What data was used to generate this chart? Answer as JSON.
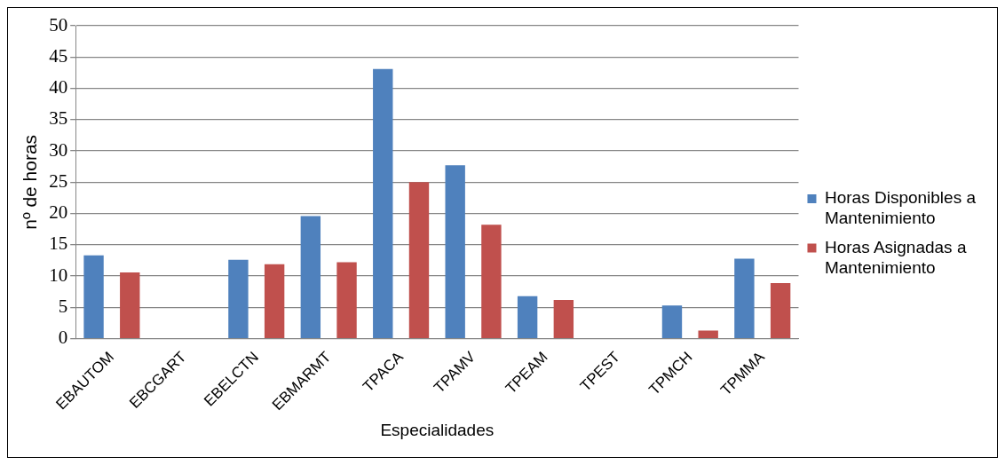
{
  "chart_data": {
    "type": "bar",
    "xlabel": "Especialidades",
    "ylabel": "nº de horas",
    "categories": [
      "EBAUTOM",
      "EBCGART",
      "EBELCTN",
      "EBMARMT",
      "TPACA",
      "TPAMV",
      "TPEAM",
      "TPEST",
      "TPMCH",
      "TPMMA"
    ],
    "series": [
      {
        "name": "Horas Disponibles a Mantenimiento",
        "color": "#4f81bd",
        "values": [
          13.3,
          0,
          12.6,
          19.6,
          43.1,
          27.7,
          6.8,
          0,
          5.3,
          12.8
        ]
      },
      {
        "name": "Horas Asignadas a Mantenimiento",
        "color": "#c0504d",
        "values": [
          10.6,
          0,
          11.9,
          12.2,
          25,
          18.2,
          6.2,
          0,
          1.3,
          8.9
        ]
      }
    ],
    "ylim": [
      0,
      50
    ],
    "yticks": [
      0,
      5,
      10,
      15,
      20,
      25,
      30,
      35,
      40,
      45,
      50
    ],
    "grid": "y",
    "legend": "right"
  }
}
